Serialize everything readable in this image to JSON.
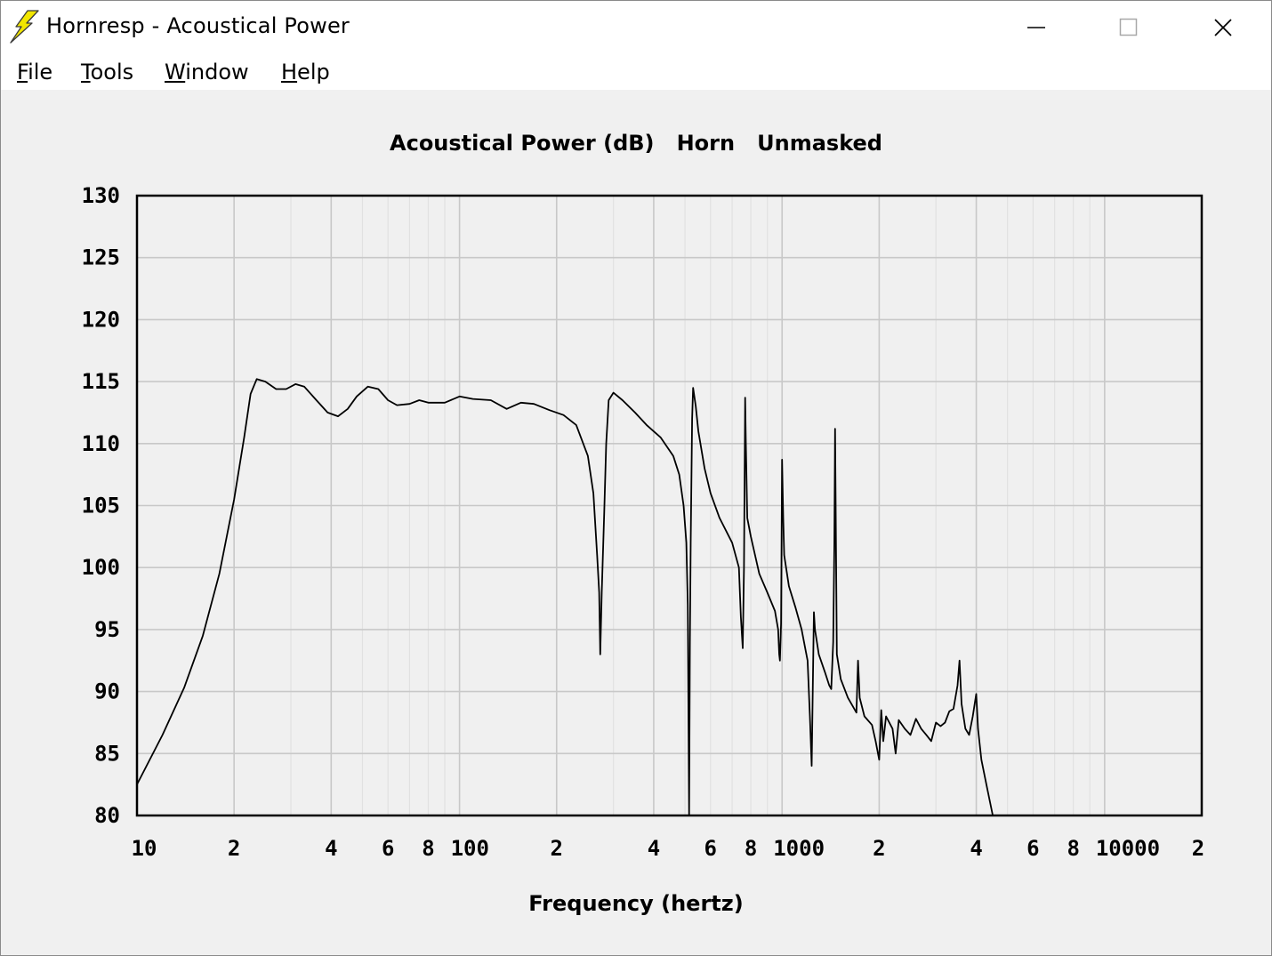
{
  "window": {
    "title": "Hornresp - Acoustical Power",
    "icon": "lightning-bolt-icon",
    "controls": [
      "minimize-icon",
      "maximize-icon",
      "close-icon"
    ]
  },
  "menu": [
    {
      "accel": "F",
      "rest": "ile"
    },
    {
      "accel": "T",
      "rest": "ools"
    },
    {
      "accel": "W",
      "rest": "indow"
    },
    {
      "accel": "H",
      "rest": "elp"
    }
  ],
  "chart_data": {
    "type": "line",
    "title": "Acoustical Power (dB)   Horn   Unmasked",
    "xlabel": "Frequency (hertz)",
    "ylabel": "",
    "xscale": "log",
    "xlim": [
      10,
      20000
    ],
    "ylim": [
      80,
      130
    ],
    "grid": true,
    "line_color": "#000000",
    "y_ticks": [
      "130",
      "125",
      "120",
      "115",
      "110",
      "105",
      "100",
      "95",
      "90",
      "85",
      "80"
    ],
    "x_ticks": [
      {
        "value": 10,
        "label": "10"
      },
      {
        "value": 20,
        "label": "2"
      },
      {
        "value": 40,
        "label": "4"
      },
      {
        "value": 60,
        "label": "6"
      },
      {
        "value": 80,
        "label": "8"
      },
      {
        "value": 100,
        "label": "100"
      },
      {
        "value": 200,
        "label": "2"
      },
      {
        "value": 400,
        "label": "4"
      },
      {
        "value": 600,
        "label": "6"
      },
      {
        "value": 800,
        "label": "8"
      },
      {
        "value": 1000,
        "label": "1000"
      },
      {
        "value": 2000,
        "label": "2"
      },
      {
        "value": 4000,
        "label": "4"
      },
      {
        "value": 6000,
        "label": "6"
      },
      {
        "value": 8000,
        "label": "8"
      },
      {
        "value": 10000,
        "label": "10000"
      },
      {
        "value": 20000,
        "label": "2"
      }
    ],
    "series": [
      {
        "points": [
          [
            10,
            82.5
          ],
          [
            12,
            86.5
          ],
          [
            14,
            90.3
          ],
          [
            16,
            94.5
          ],
          [
            18,
            99.5
          ],
          [
            20,
            105.5
          ],
          [
            21.5,
            110.5
          ],
          [
            22.5,
            114
          ],
          [
            23.5,
            115.2
          ],
          [
            25,
            115
          ],
          [
            27,
            114.4
          ],
          [
            29,
            114.4
          ],
          [
            31,
            114.8
          ],
          [
            33,
            114.6
          ],
          [
            36,
            113.5
          ],
          [
            39,
            112.5
          ],
          [
            42,
            112.2
          ],
          [
            45,
            112.8
          ],
          [
            48,
            113.8
          ],
          [
            52,
            114.6
          ],
          [
            56,
            114.4
          ],
          [
            60,
            113.5
          ],
          [
            64,
            113.1
          ],
          [
            70,
            113.2
          ],
          [
            75,
            113.5
          ],
          [
            80,
            113.3
          ],
          [
            90,
            113.3
          ],
          [
            100,
            113.8
          ],
          [
            110,
            113.6
          ],
          [
            125,
            113.5
          ],
          [
            140,
            112.8
          ],
          [
            155,
            113.3
          ],
          [
            170,
            113.2
          ],
          [
            190,
            112.7
          ],
          [
            210,
            112.3
          ],
          [
            230,
            111.5
          ],
          [
            250,
            109
          ],
          [
            260,
            106
          ],
          [
            267,
            101
          ],
          [
            271,
            98
          ],
          [
            273,
            93
          ],
          [
            276,
            98
          ],
          [
            281,
            104.5
          ],
          [
            285,
            110
          ],
          [
            290,
            113.5
          ],
          [
            300,
            114.1
          ],
          [
            320,
            113.5
          ],
          [
            350,
            112.5
          ],
          [
            380,
            111.5
          ],
          [
            420,
            110.5
          ],
          [
            460,
            109
          ],
          [
            480,
            107.5
          ],
          [
            495,
            105
          ],
          [
            505,
            102
          ],
          [
            510,
            97
          ],
          [
            512,
            90
          ],
          [
            515,
            80
          ],
          [
            518,
            94
          ],
          [
            521,
            102
          ],
          [
            526,
            112
          ],
          [
            530,
            114.5
          ],
          [
            540,
            113
          ],
          [
            550,
            111
          ],
          [
            575,
            108
          ],
          [
            600,
            106
          ],
          [
            640,
            104
          ],
          [
            700,
            102
          ],
          [
            735,
            100
          ],
          [
            745,
            96
          ],
          [
            755,
            93.5
          ],
          [
            762,
            100
          ],
          [
            768,
            113.7
          ],
          [
            772,
            110
          ],
          [
            780,
            104
          ],
          [
            800,
            102.5
          ],
          [
            850,
            99.5
          ],
          [
            900,
            98
          ],
          [
            950,
            96.5
          ],
          [
            972,
            95
          ],
          [
            980,
            93
          ],
          [
            985,
            92.5
          ],
          [
            993,
            95.5
          ],
          [
            1000,
            108.7
          ],
          [
            1008,
            104
          ],
          [
            1015,
            101
          ],
          [
            1050,
            98.5
          ],
          [
            1100,
            96.8
          ],
          [
            1150,
            95
          ],
          [
            1200,
            92.5
          ],
          [
            1220,
            88
          ],
          [
            1235,
            84
          ],
          [
            1245,
            90
          ],
          [
            1255,
            96.4
          ],
          [
            1265,
            95
          ],
          [
            1300,
            93
          ],
          [
            1360,
            91.5
          ],
          [
            1400,
            90.5
          ],
          [
            1420,
            90.2
          ],
          [
            1440,
            94
          ],
          [
            1452,
            102
          ],
          [
            1460,
            111.2
          ],
          [
            1470,
            101
          ],
          [
            1478,
            93
          ],
          [
            1520,
            91
          ],
          [
            1600,
            89.5
          ],
          [
            1700,
            88.3
          ],
          [
            1720,
            92.5
          ],
          [
            1740,
            89.5
          ],
          [
            1800,
            88
          ],
          [
            1900,
            87.3
          ],
          [
            1950,
            86
          ],
          [
            2000,
            84.5
          ],
          [
            2030,
            88.5
          ],
          [
            2060,
            86
          ],
          [
            2100,
            88
          ],
          [
            2200,
            87
          ],
          [
            2250,
            85
          ],
          [
            2300,
            87.7
          ],
          [
            2400,
            87
          ],
          [
            2500,
            86.5
          ],
          [
            2600,
            87.8
          ],
          [
            2700,
            87
          ],
          [
            2800,
            86.5
          ],
          [
            2900,
            86
          ],
          [
            3000,
            87.5
          ],
          [
            3100,
            87.2
          ],
          [
            3200,
            87.5
          ],
          [
            3300,
            88.4
          ],
          [
            3400,
            88.6
          ],
          [
            3500,
            90.5
          ],
          [
            3550,
            92.5
          ],
          [
            3600,
            89
          ],
          [
            3700,
            87
          ],
          [
            3800,
            86.5
          ],
          [
            3900,
            88
          ],
          [
            4000,
            89.8
          ],
          [
            4050,
            87
          ],
          [
            4150,
            84.5
          ],
          [
            4300,
            82.5
          ],
          [
            4500,
            80
          ]
        ]
      }
    ]
  }
}
